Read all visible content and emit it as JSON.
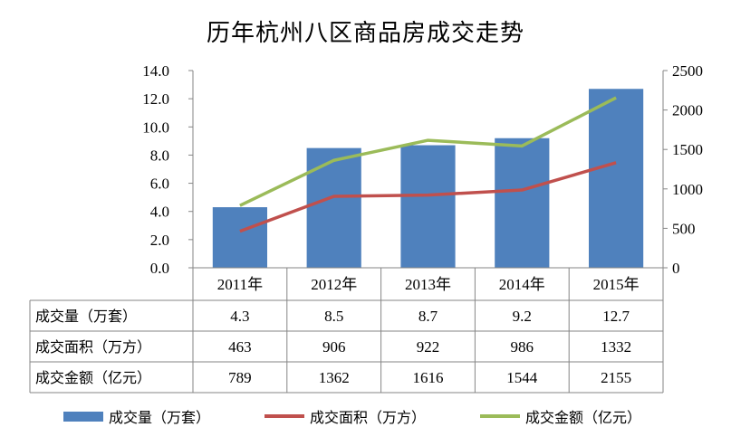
{
  "chart_data": {
    "type": "bar",
    "title": "历年杭州八区商品房成交走势",
    "categories": [
      "2011年",
      "2012年",
      "2013年",
      "2014年",
      "2015年"
    ],
    "series": [
      {
        "name": "成交量（万套）",
        "type": "bar",
        "axis": "left",
        "color": "#4f81bd",
        "values": [
          4.3,
          8.5,
          8.7,
          9.2,
          12.7
        ],
        "display": [
          "4.3",
          "8.5",
          "8.7",
          "9.2",
          "12.7"
        ]
      },
      {
        "name": "成交面积（万方）",
        "type": "line",
        "axis": "right",
        "color": "#c0504d",
        "values": [
          463,
          906,
          922,
          986,
          1332
        ],
        "display": [
          "463",
          "906",
          "922",
          "986",
          "1332"
        ]
      },
      {
        "name": "成交金额（亿元）",
        "type": "line",
        "axis": "right",
        "color": "#9bbb59",
        "values": [
          789,
          1362,
          1616,
          1544,
          2155
        ],
        "display": [
          "789",
          "1362",
          "1616",
          "1544",
          "2155"
        ]
      }
    ],
    "y_left": {
      "range": [
        0,
        14
      ],
      "ticks": [
        "0.0",
        "2.0",
        "4.0",
        "6.0",
        "8.0",
        "10.0",
        "12.0",
        "14.0"
      ]
    },
    "y_right": {
      "range": [
        0,
        2500
      ],
      "ticks": [
        "0",
        "500",
        "1000",
        "1500",
        "2000",
        "2500"
      ]
    },
    "grid": false,
    "legend_position": "bottom",
    "data_table": true
  }
}
